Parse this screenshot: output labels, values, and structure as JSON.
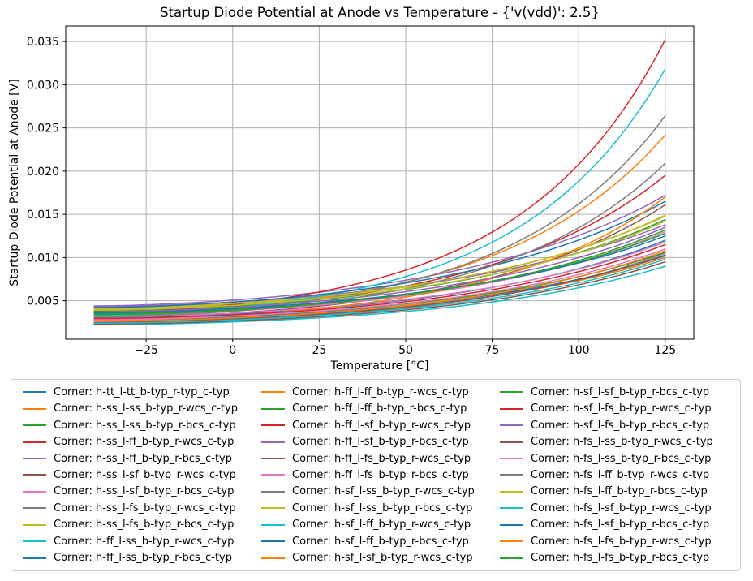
{
  "chart_data": {
    "type": "line",
    "title": "Startup Diode Potential at Anode vs Temperature - {'v(vdd)': 2.5}",
    "xlabel": "Temperature [°C]",
    "ylabel": "Startup Diode Potential at Anode [V]",
    "grid": true,
    "legend_position": "below",
    "legend_columns": 3,
    "legend_rows": 11,
    "legend_fill_order": "column-major",
    "xlim": [
      -48.25,
      133.25
    ],
    "ylim": [
      0.00055,
      0.0368
    ],
    "x_range": [
      -40,
      125
    ],
    "curve_shape": "exponential-growth",
    "xticks": {
      "values": [
        -25,
        0,
        25,
        50,
        75,
        100,
        125
      ],
      "labels": [
        "−25",
        "0",
        "25",
        "50",
        "75",
        "100",
        "125"
      ]
    },
    "yticks": {
      "values": [
        0.005,
        0.01,
        0.015,
        0.02,
        0.025,
        0.03,
        0.035
      ],
      "labels": [
        "0.005",
        "0.010",
        "0.015",
        "0.020",
        "0.025",
        "0.030",
        "0.035"
      ]
    },
    "series": [
      {
        "label": "Corner: h-tt_l-tt_b-typ_r-typ_c-typ",
        "color": "#1f77b4",
        "v_at_minus40C": 0.003,
        "v_at_125C": 0.012
      },
      {
        "label": "Corner: h-ss_l-ss_b-typ_r-wcs_c-typ",
        "color": "#ff7f0e",
        "v_at_minus40C": 0.0026,
        "v_at_125C": 0.01
      },
      {
        "label": "Corner: h-ss_l-ss_b-typ_r-bcs_c-typ",
        "color": "#2ca02c",
        "v_at_minus40C": 0.0028,
        "v_at_125C": 0.0106
      },
      {
        "label": "Corner: h-ss_l-ff_b-typ_r-wcs_c-typ",
        "color": "#d62728",
        "v_at_minus40C": 0.0035,
        "v_at_125C": 0.0195
      },
      {
        "label": "Corner: h-ss_l-ff_b-typ_r-bcs_c-typ",
        "color": "#9467bd",
        "v_at_minus40C": 0.0044,
        "v_at_125C": 0.0172
      },
      {
        "label": "Corner: h-ss_l-sf_b-typ_r-wcs_c-typ",
        "color": "#8c564b",
        "v_at_minus40C": 0.003,
        "v_at_125C": 0.0161
      },
      {
        "label": "Corner: h-ss_l-sf_b-typ_r-bcs_c-typ",
        "color": "#e377c2",
        "v_at_minus40C": 0.0033,
        "v_at_125C": 0.013
      },
      {
        "label": "Corner: h-ss_l-fs_b-typ_r-wcs_c-typ",
        "color": "#7f7f7f",
        "v_at_minus40C": 0.0024,
        "v_at_125C": 0.0105
      },
      {
        "label": "Corner: h-ss_l-fs_b-typ_r-bcs_c-typ",
        "color": "#bcbd22",
        "v_at_minus40C": 0.004,
        "v_at_125C": 0.0149
      },
      {
        "label": "Corner: h-ff_l-ss_b-typ_r-wcs_c-typ",
        "color": "#17becf",
        "v_at_minus40C": 0.0022,
        "v_at_125C": 0.009
      },
      {
        "label": "Corner: h-ff_l-ss_b-typ_r-bcs_c-typ",
        "color": "#1f77b4",
        "v_at_minus40C": 0.0027,
        "v_at_125C": 0.0102
      },
      {
        "label": "Corner: h-ff_l-ff_b-typ_r-wcs_c-typ",
        "color": "#ff7f0e",
        "v_at_minus40C": 0.0034,
        "v_at_125C": 0.0242
      },
      {
        "label": "Corner: h-ff_l-ff_b-typ_r-bcs_c-typ",
        "color": "#2ca02c",
        "v_at_minus40C": 0.0038,
        "v_at_125C": 0.0144
      },
      {
        "label": "Corner: h-ff_l-sf_b-typ_r-wcs_c-typ",
        "color": "#d62728",
        "v_at_minus40C": 0.0036,
        "v_at_125C": 0.0352
      },
      {
        "label": "Corner: h-ff_l-sf_b-typ_r-bcs_c-typ",
        "color": "#9467bd",
        "v_at_minus40C": 0.0043,
        "v_at_125C": 0.0138
      },
      {
        "label": "Corner: h-ff_l-fs_b-typ_r-wcs_c-typ",
        "color": "#8c564b",
        "v_at_minus40C": 0.0025,
        "v_at_125C": 0.0103
      },
      {
        "label": "Corner: h-ff_l-fs_b-typ_r-bcs_c-typ",
        "color": "#e377c2",
        "v_at_minus40C": 0.0031,
        "v_at_125C": 0.0118
      },
      {
        "label": "Corner: h-sf_l-ss_b-typ_r-wcs_c-typ",
        "color": "#7f7f7f",
        "v_at_minus40C": 0.0032,
        "v_at_125C": 0.0264
      },
      {
        "label": "Corner: h-sf_l-ss_b-typ_r-bcs_c-typ",
        "color": "#bcbd22",
        "v_at_minus40C": 0.0041,
        "v_at_125C": 0.0148
      },
      {
        "label": "Corner: h-sf_l-ff_b-typ_r-wcs_c-typ",
        "color": "#17becf",
        "v_at_minus40C": 0.0033,
        "v_at_125C": 0.0318
      },
      {
        "label": "Corner: h-sf_l-ff_b-typ_r-bcs_c-typ",
        "color": "#1f77b4",
        "v_at_minus40C": 0.0042,
        "v_at_125C": 0.0165
      },
      {
        "label": "Corner: h-sf_l-sf_b-typ_r-wcs_c-typ",
        "color": "#ff7f0e",
        "v_at_minus40C": 0.0027,
        "v_at_125C": 0.017
      },
      {
        "label": "Corner: h-sf_l-sf_b-typ_r-bcs_c-typ",
        "color": "#2ca02c",
        "v_at_minus40C": 0.0035,
        "v_at_125C": 0.0128
      },
      {
        "label": "Corner: h-sf_l-fs_b-typ_r-wcs_c-typ",
        "color": "#d62728",
        "v_at_minus40C": 0.0029,
        "v_at_125C": 0.0115
      },
      {
        "label": "Corner: h-sf_l-fs_b-typ_r-bcs_c-typ",
        "color": "#9467bd",
        "v_at_minus40C": 0.0037,
        "v_at_125C": 0.0135
      },
      {
        "label": "Corner: h-fs_l-ss_b-typ_r-wcs_c-typ",
        "color": "#8c564b",
        "v_at_minus40C": 0.0023,
        "v_at_125C": 0.0095
      },
      {
        "label": "Corner: h-fs_l-ss_b-typ_r-bcs_c-typ",
        "color": "#e377c2",
        "v_at_minus40C": 0.0028,
        "v_at_125C": 0.011
      },
      {
        "label": "Corner: h-fs_l-ff_b-typ_r-wcs_c-typ",
        "color": "#7f7f7f",
        "v_at_minus40C": 0.0031,
        "v_at_125C": 0.0209
      },
      {
        "label": "Corner: h-fs_l-ff_b-typ_r-bcs_c-typ",
        "color": "#bcbd22",
        "v_at_minus40C": 0.0039,
        "v_at_125C": 0.0142
      },
      {
        "label": "Corner: h-fs_l-sf_b-typ_r-wcs_c-typ",
        "color": "#17becf",
        "v_at_minus40C": 0.0024,
        "v_at_125C": 0.0098
      },
      {
        "label": "Corner: h-fs_l-sf_b-typ_r-bcs_c-typ",
        "color": "#1f77b4",
        "v_at_minus40C": 0.0036,
        "v_at_125C": 0.0125
      },
      {
        "label": "Corner: h-fs_l-fs_b-typ_r-wcs_c-typ",
        "color": "#ff7f0e",
        "v_at_minus40C": 0.0026,
        "v_at_125C": 0.0108
      },
      {
        "label": "Corner: h-fs_l-fs_b-typ_r-bcs_c-typ",
        "color": "#2ca02c",
        "v_at_minus40C": 0.0034,
        "v_at_125C": 0.0132
      }
    ]
  },
  "style_colors": {
    "background": "#ffffff",
    "grid": "#b0b0b0",
    "spine": "#000000",
    "legend_border": "#cccccc",
    "text": "#000000"
  }
}
